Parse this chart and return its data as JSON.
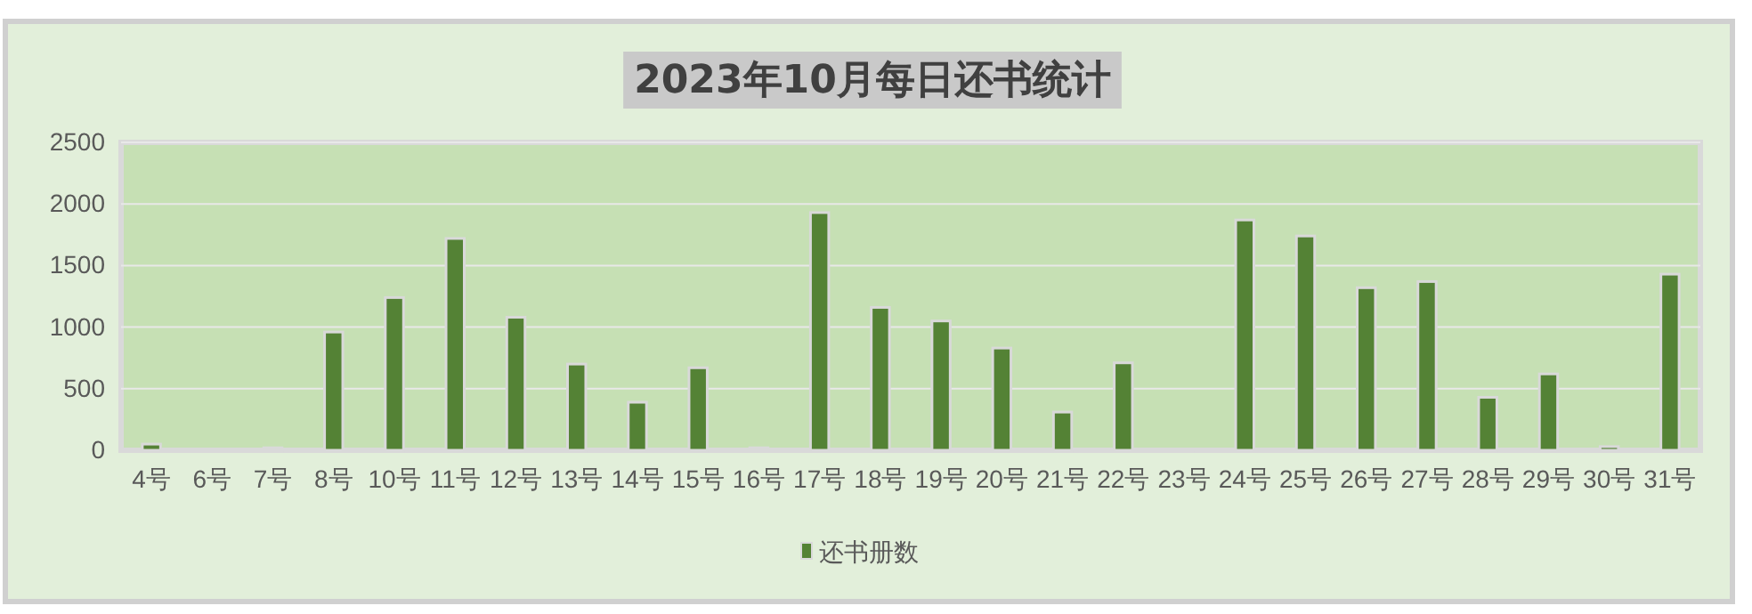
{
  "chart_data": {
    "type": "bar",
    "title": "2023年10月每日还书统计",
    "categories": [
      "4号",
      "6号",
      "7号",
      "8号",
      "10号",
      "11号",
      "12号",
      "13号",
      "14号",
      "15号",
      "16号",
      "17号",
      "18号",
      "19号",
      "20号",
      "21号",
      "22号",
      "23号",
      "24号",
      "25号",
      "26号",
      "27号",
      "28号",
      "29号",
      "30号",
      "31号"
    ],
    "series": [
      {
        "name": "还书册数",
        "color": "#548235",
        "values": [
          50,
          10,
          20,
          960,
          1240,
          1720,
          1080,
          700,
          390,
          670,
          20,
          1930,
          1160,
          1050,
          830,
          310,
          710,
          10,
          1870,
          1740,
          1320,
          1370,
          430,
          620,
          30,
          1430
        ]
      }
    ],
    "ylim": [
      0,
      2500
    ],
    "yticks": [
      0,
      500,
      1000,
      1500,
      2000,
      2500
    ],
    "grid": "y",
    "legend": "bottom"
  }
}
